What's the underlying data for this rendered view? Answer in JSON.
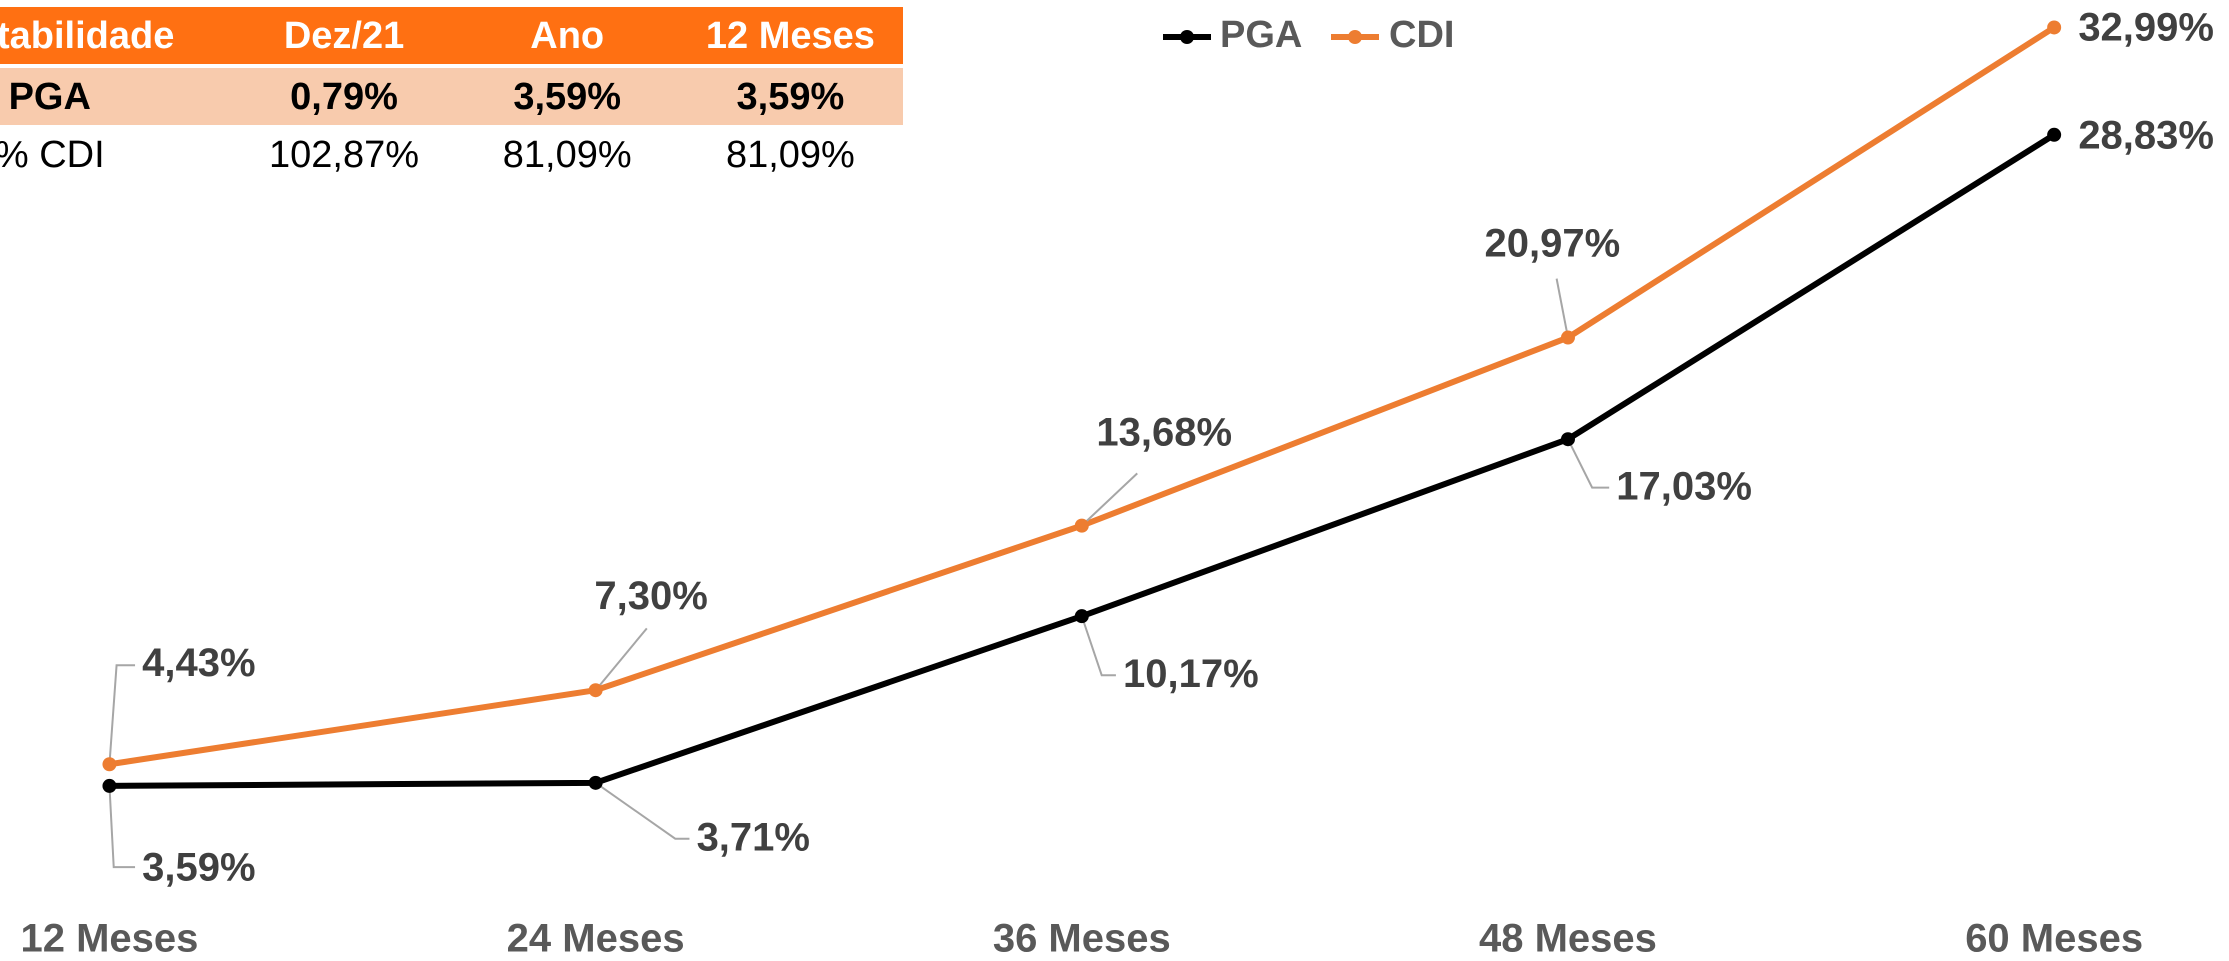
{
  "chart_data": {
    "type": "line",
    "categories": [
      "12 Meses",
      "24 Meses",
      "36 Meses",
      "48 Meses",
      "60 Meses"
    ],
    "series": [
      {
        "name": "PGA",
        "color": "#000000",
        "values": [
          3.59,
          3.71,
          10.17,
          17.03,
          28.83
        ],
        "value_labels": [
          "3,59%",
          "3,71%",
          "10,17%",
          "17,03%",
          "28,83%"
        ]
      },
      {
        "name": "CDI",
        "color": "#ED7D31",
        "values": [
          4.43,
          7.3,
          13.68,
          20.97,
          32.99
        ],
        "value_labels": [
          "4,43%",
          "7,30%",
          "13,68%",
          "20,97%",
          "32,99%"
        ]
      }
    ],
    "ylim": [
      0,
      34
    ],
    "legend": "top"
  },
  "table": {
    "header": [
      "Rentabilidade",
      "Dez/21",
      "Ano",
      "12 Meses"
    ],
    "rows": [
      [
        "PGA",
        "0,79%",
        "3,59%",
        "3,59%"
      ],
      [
        "% CDI",
        "102,87%",
        "81,09%",
        "81,09%"
      ]
    ]
  }
}
